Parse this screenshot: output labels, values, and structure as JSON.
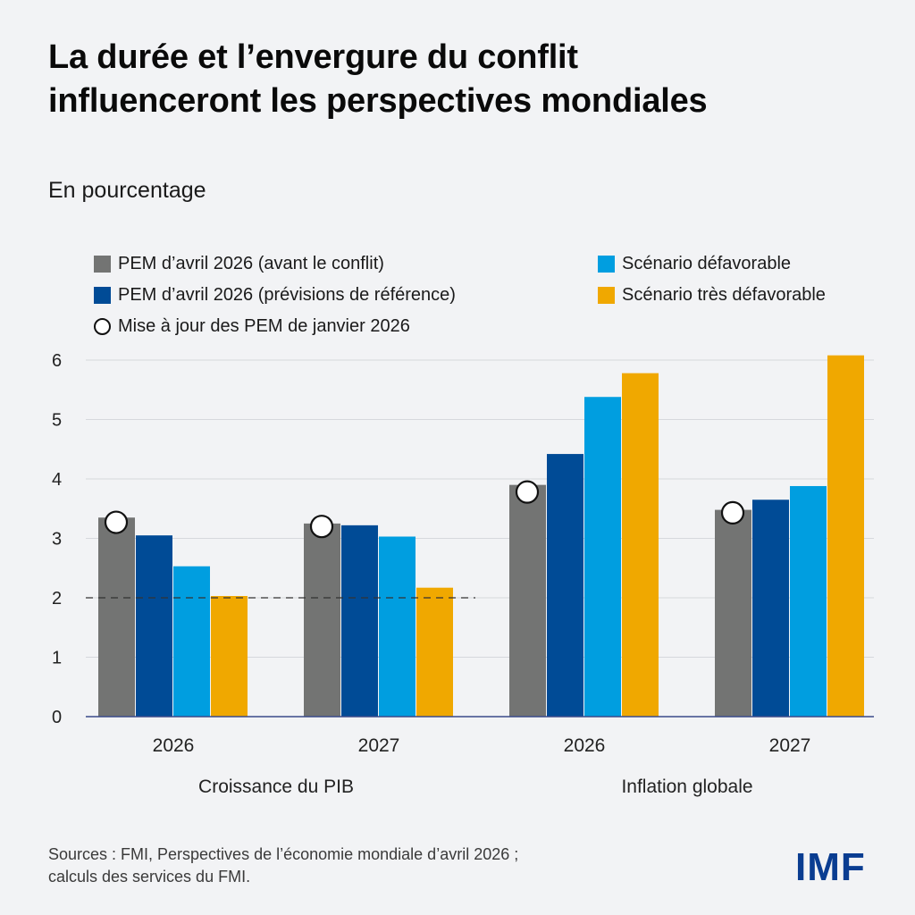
{
  "title_lines": [
    "La durée et l’envergure du conflit",
    "influenceront les perspectives mondiales"
  ],
  "subtitle": "En pourcentage",
  "legend": [
    {
      "label": "PEM d’avril 2026 (avant le conflit)",
      "color": "#737473",
      "shape": "square"
    },
    {
      "label": "PEM d’avril 2026 (prévisions de référence)",
      "color": "#004b96",
      "shape": "square"
    },
    {
      "label": "Mise à jour des PEM de janvier 2026",
      "color": "#ffffff",
      "shape": "circle"
    },
    {
      "label": "Scénario défavorable",
      "color": "#009ee0",
      "shape": "square"
    },
    {
      "label": "Scénario très défavorable",
      "color": "#f0a800",
      "shape": "square"
    }
  ],
  "chart_data": {
    "type": "bar",
    "ylim": [
      0,
      6
    ],
    "yticks": [
      "0",
      "1",
      "2",
      "3",
      "4",
      "5",
      "6"
    ],
    "grid": true,
    "legend_position": "top",
    "groups": [
      "Croissance du PIB",
      "Inflation globale"
    ],
    "categories": [
      "2026",
      "2027",
      "2026",
      "2027"
    ],
    "category_group": [
      0,
      0,
      1,
      1
    ],
    "series": [
      {
        "name": "PEM d’avril 2026 (avant le conflit)",
        "color": "#737473",
        "values": [
          3.35,
          3.25,
          3.9,
          3.48
        ]
      },
      {
        "name": "PEM d’avril 2026 (prévisions de référence)",
        "color": "#004b96",
        "values": [
          3.05,
          3.22,
          4.42,
          3.65
        ]
      },
      {
        "name": "Scénario défavorable",
        "color": "#009ee0",
        "values": [
          2.53,
          3.03,
          5.38,
          3.88
        ]
      },
      {
        "name": "Scénario très défavorable",
        "color": "#f0a800",
        "values": [
          2.03,
          2.17,
          5.78,
          6.08
        ]
      }
    ],
    "markers": {
      "name": "Mise à jour des PEM de janvier 2026",
      "values": [
        3.27,
        3.2,
        3.78,
        3.43
      ]
    },
    "reference_line": {
      "value": 2,
      "style": "dashed",
      "groups": [
        0
      ]
    }
  },
  "footer": {
    "line1": "Sources : FMI, Perspectives de l’économie mondiale d’avril 2026 ;",
    "line2": "calculs des services du FMI."
  },
  "logo": "IMF"
}
